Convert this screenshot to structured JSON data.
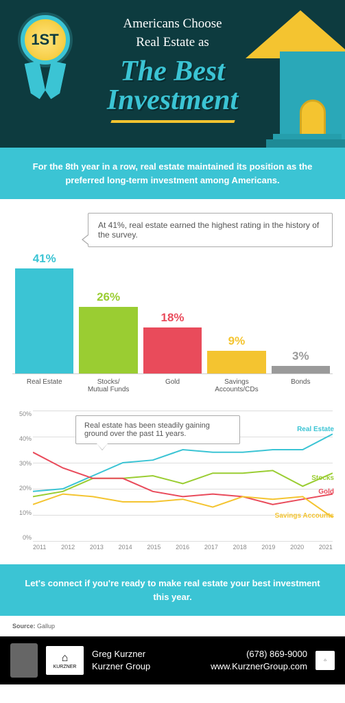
{
  "hero": {
    "ribbon_text": "1ST",
    "subtitle": "Americans Choose\nReal Estate as",
    "main_title": "The Best\nInvestment"
  },
  "subhead": "For the 8th year in a row, real estate maintained its position as the preferred long-term investment among Americans.",
  "bar_chart": {
    "callout": "At 41%, real estate earned the highest rating in the history of the survey.",
    "categories": [
      "Real Estate",
      "Stocks/\nMutual Funds",
      "Gold",
      "Savings\nAccounts/CDs",
      "Bonds"
    ],
    "values": [
      41,
      26,
      18,
      9,
      3
    ],
    "colors": [
      "#3bc4d4",
      "#9acd32",
      "#e94b5b",
      "#f4c430",
      "#9a9a9a"
    ],
    "max": 43
  },
  "line_chart": {
    "callout": "Real estate has been steadily gaining ground over the past 11 years.",
    "ylim": [
      0,
      50
    ],
    "ytick_step": 10,
    "years": [
      "2011",
      "2012",
      "2013",
      "2014",
      "2015",
      "2016",
      "2017",
      "2018",
      "2019",
      "2020",
      "2021"
    ],
    "series": [
      {
        "name": "Real Estate",
        "label": "Real Estate",
        "color": "#3bc4d4",
        "data": [
          19,
          20,
          25,
          30,
          31,
          35,
          34,
          34,
          35,
          35,
          41
        ]
      },
      {
        "name": "Stocks",
        "label": "Stocks",
        "color": "#9acd32",
        "data": [
          17,
          19,
          24,
          24,
          25,
          22,
          26,
          26,
          27,
          21,
          26
        ]
      },
      {
        "name": "Gold",
        "label": "Gold",
        "color": "#e94b5b",
        "data": [
          34,
          28,
          24,
          24,
          19,
          17,
          18,
          17,
          14,
          16,
          18
        ]
      },
      {
        "name": "Savings Accounts",
        "label": "Savings Accounts",
        "color": "#f4c430",
        "data": [
          14,
          18,
          17,
          15,
          15,
          16,
          13,
          17,
          16,
          17,
          9
        ]
      }
    ],
    "label_positions": {
      "Real Estate": 22,
      "Stocks": 93,
      "Gold": 113,
      "Savings Accounts": 148
    }
  },
  "cta": "Let's connect if you're ready to make real estate your best investment this year.",
  "source_label": "Source:",
  "source": "Gallup",
  "footer": {
    "name": "Greg Kurzner",
    "company": "Kurzner Group",
    "phone": "(678) 869-9000",
    "url": "www.KurznerGroup.com",
    "logo_text": "KURZNER"
  }
}
